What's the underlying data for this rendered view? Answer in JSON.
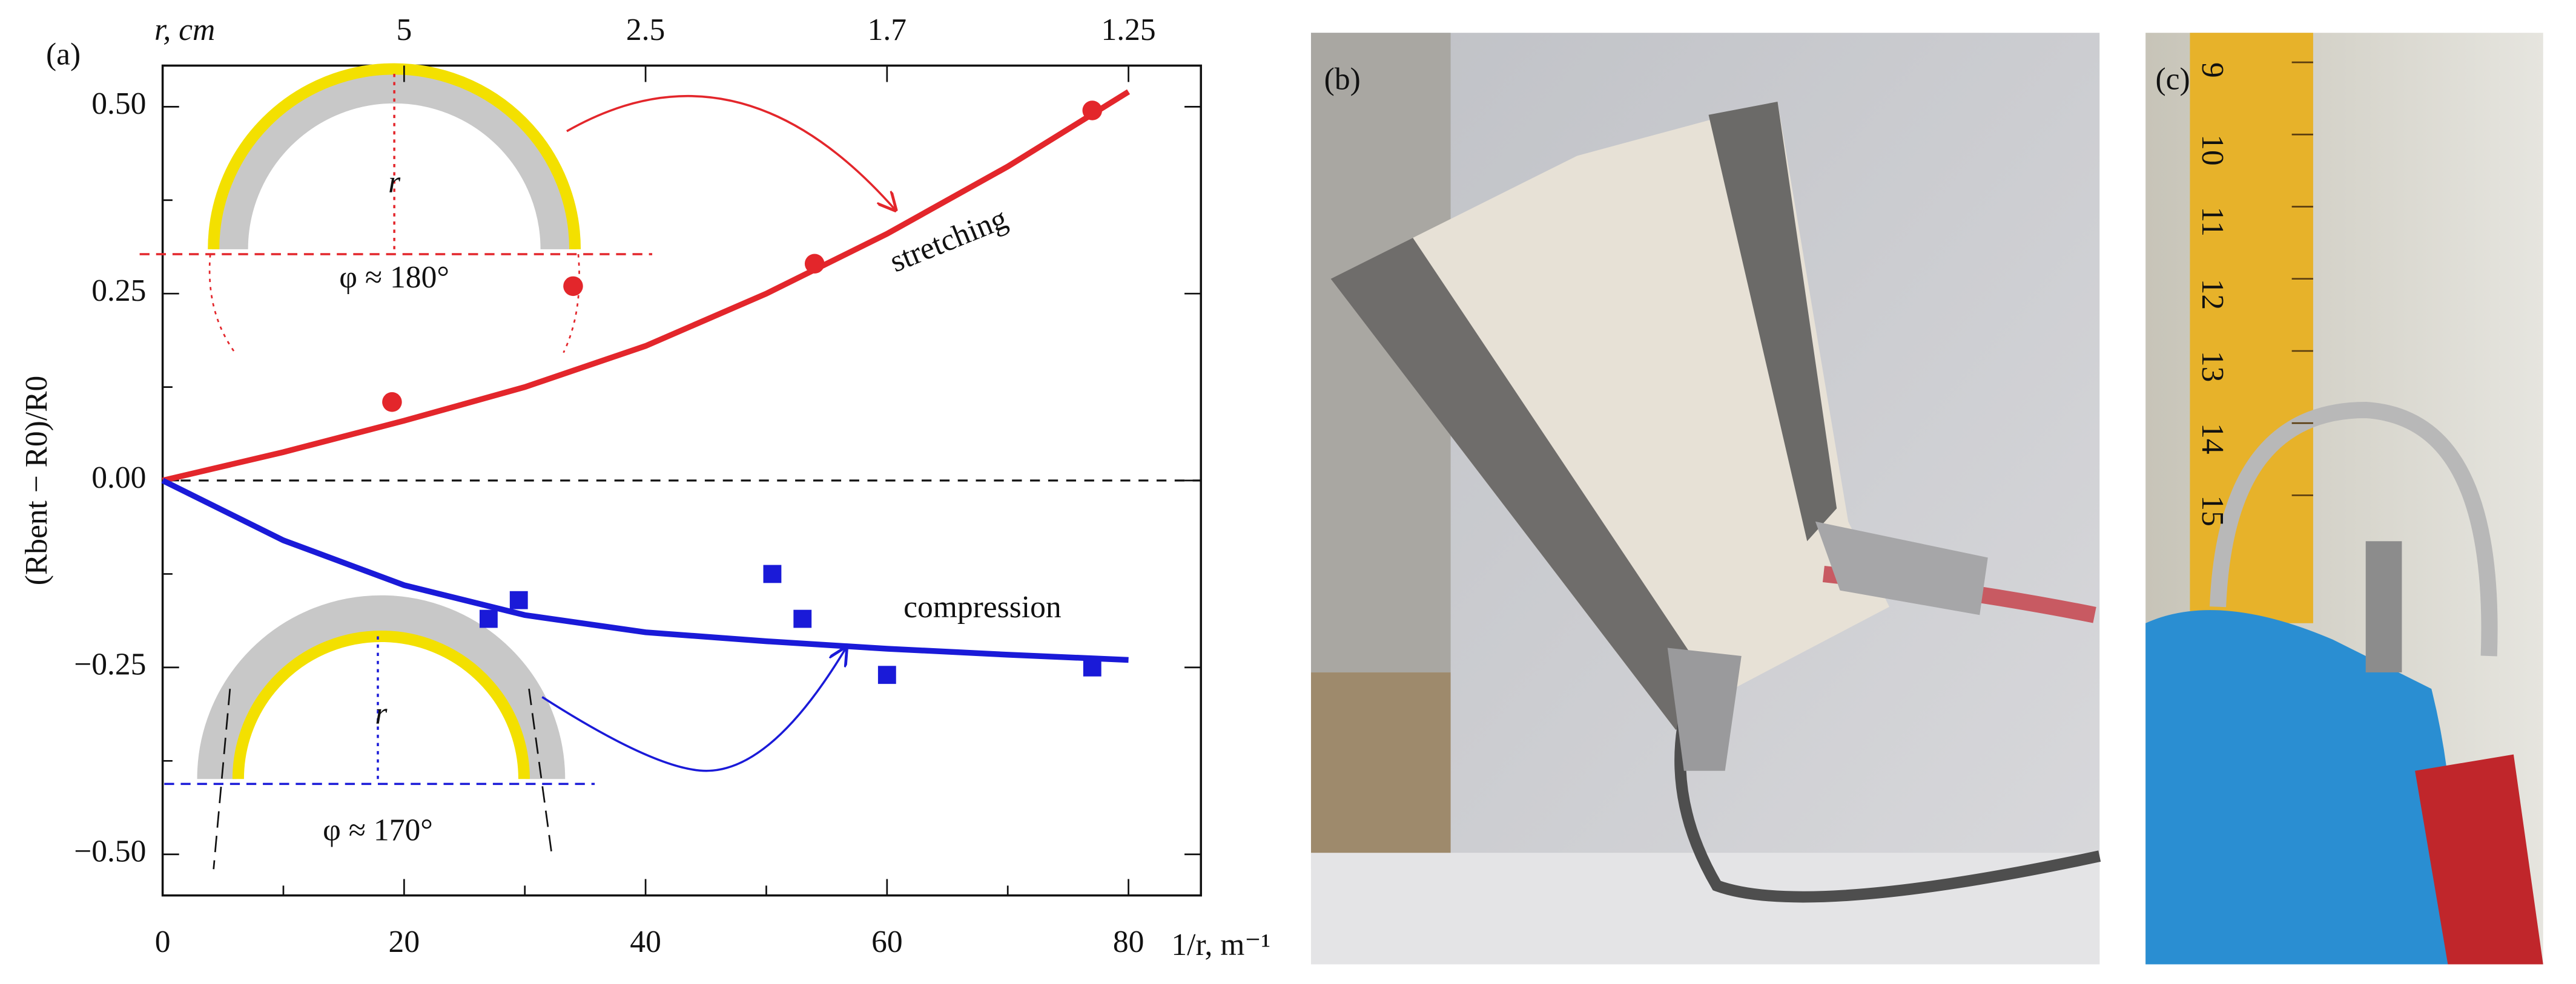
{
  "chart_data": {
    "type": "scatter",
    "panel_label": "(a)",
    "xlabel": "1/r, m⁻¹",
    "x2label": "r, cm",
    "ylabel": "(Rbent − R0)/R0",
    "xlim": [
      0,
      86
    ],
    "ylim": [
      -0.555,
      0.555
    ],
    "xticks": [
      0,
      20,
      40,
      60,
      80
    ],
    "x2ticks": [
      {
        "value": 20,
        "label": "5"
      },
      {
        "value": 40,
        "label": "2.5"
      },
      {
        "value": 60,
        "label": "1.7"
      },
      {
        "value": 80,
        "label": "1.25"
      }
    ],
    "yticks": [
      {
        "value": 0.5,
        "label": "0.50"
      },
      {
        "value": 0.25,
        "label": "0.25"
      },
      {
        "value": 0,
        "label": "0.00"
      },
      {
        "value": -0.25,
        "label": "−0.25"
      },
      {
        "value": -0.5,
        "label": "−0.50"
      }
    ],
    "zero_line": true,
    "series": [
      {
        "name": "stretching",
        "color": "#e3262b",
        "marker": "circle",
        "x": [
          19,
          34,
          54,
          77
        ],
        "values": [
          0.105,
          0.26,
          0.29,
          0.495
        ],
        "fit_x": [
          0,
          10,
          20,
          30,
          40,
          50,
          60,
          70,
          80
        ],
        "fit_values": [
          0,
          0.038,
          0.08,
          0.125,
          0.18,
          0.25,
          0.33,
          0.42,
          0.52
        ]
      },
      {
        "name": "compression",
        "color": "#1a1ad8",
        "marker": "square",
        "x": [
          27,
          29.5,
          50.5,
          53,
          60,
          77
        ],
        "values": [
          -0.185,
          -0.16,
          -0.125,
          -0.185,
          -0.26,
          -0.25
        ],
        "fit_x": [
          0,
          10,
          20,
          30,
          40,
          50,
          60,
          70,
          80
        ],
        "fit_values": [
          0,
          -0.08,
          -0.14,
          -0.18,
          -0.203,
          -0.215,
          -0.225,
          -0.233,
          -0.24
        ]
      }
    ],
    "annotations": {
      "top_angle": "φ ≈ 180°",
      "bottom_angle": "φ ≈ 170°",
      "top_radius": "r",
      "bottom_radius": "r"
    }
  },
  "photos": [
    {
      "label": "(b)"
    },
    {
      "label": "(c)",
      "ruler_labels": [
        "9",
        "10",
        "11",
        "12",
        "13",
        "14",
        "15"
      ]
    }
  ]
}
